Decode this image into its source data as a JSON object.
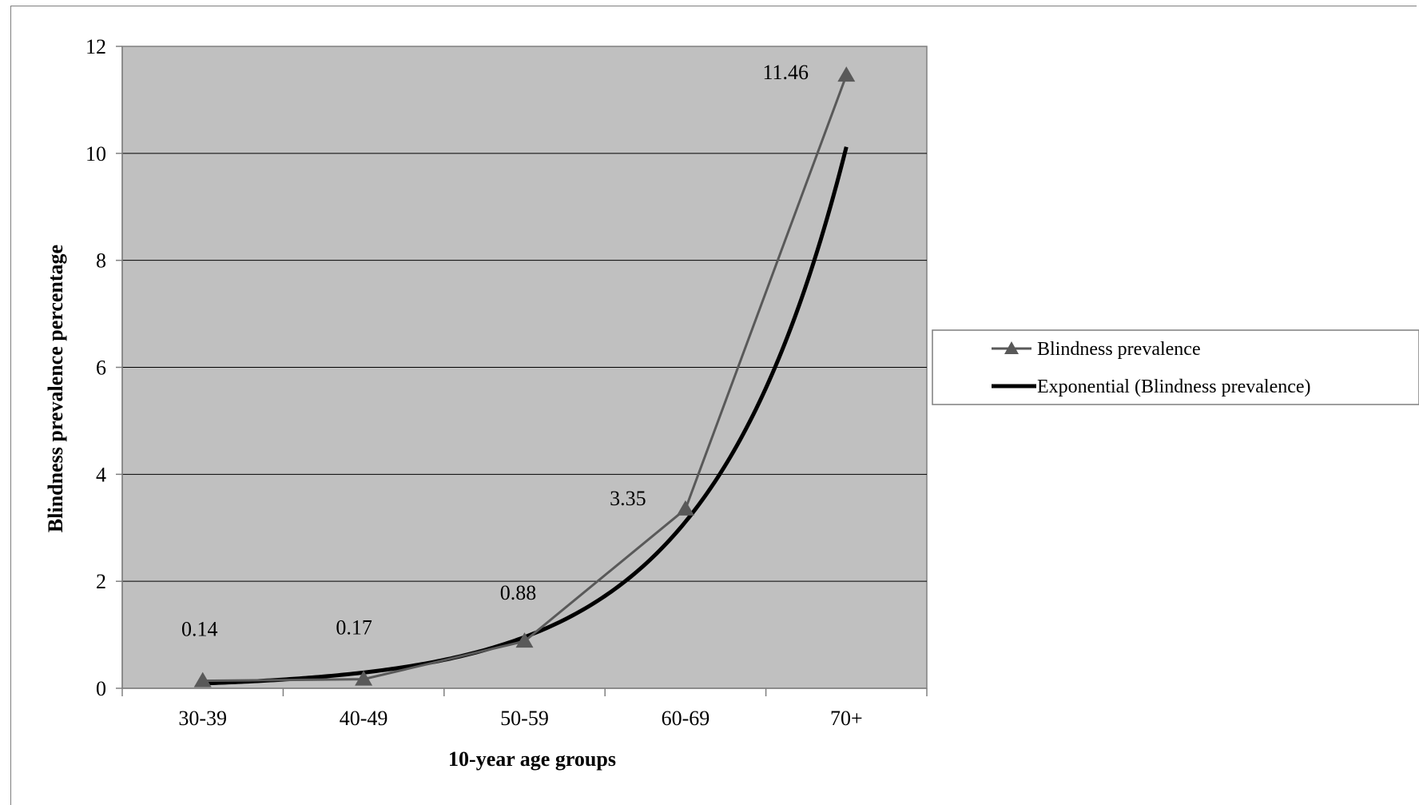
{
  "chart_data": {
    "type": "line",
    "title": "",
    "xlabel": "10-year age groups",
    "ylabel": "Blindness prevalence percentage",
    "categories": [
      "30-39",
      "40-49",
      "50-59",
      "60-69",
      "70+"
    ],
    "ylim": [
      0,
      12
    ],
    "yticks": [
      0,
      2,
      4,
      6,
      8,
      10,
      12
    ],
    "grid": true,
    "plot_background": "#c0c0c0",
    "legend_position": "right",
    "series": [
      {
        "name": "Blindness prevalence",
        "values": [
          0.14,
          0.17,
          0.88,
          3.35,
          11.46
        ],
        "data_labels": [
          "0.14",
          "0.17",
          "0.88",
          "3.35",
          "11.46"
        ],
        "color": "#595959",
        "marker": "triangle"
      },
      {
        "name": "Exponential (Blindness prevalence)",
        "type": "trendline",
        "values": [
          0.1,
          0.31,
          0.96,
          3.12,
          10.05
        ],
        "color": "#000000"
      }
    ]
  }
}
